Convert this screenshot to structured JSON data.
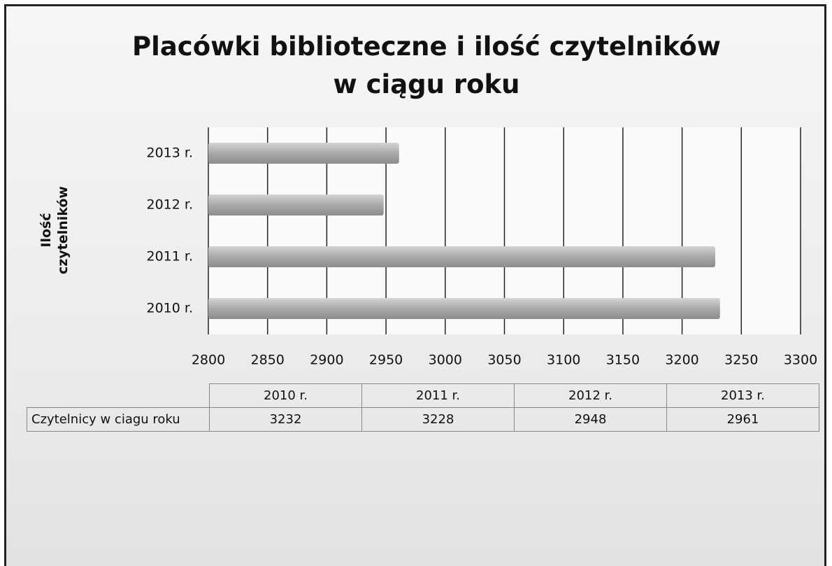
{
  "chart_data": {
    "type": "bar",
    "orientation": "horizontal",
    "title": "Placówki biblioteczne i ilość czytelników w ciągu roku",
    "ylabel": "Ilość czytelników",
    "categories": [
      "2010 r.",
      "2011 r.",
      "2012 r.",
      "2013 r."
    ],
    "values": [
      3232,
      3228,
      2948,
      2961
    ],
    "color": "#a9a9a9",
    "xlim": [
      2800,
      3300
    ],
    "xticks": [
      2800,
      2850,
      2900,
      2950,
      3000,
      3050,
      3100,
      3150,
      3200,
      3250,
      3300
    ],
    "grid": true,
    "table_row_label": "Czytelnicy w ciagu roku"
  }
}
